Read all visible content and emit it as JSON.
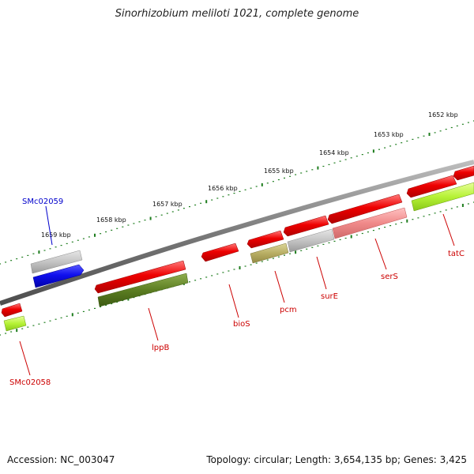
{
  "title": "Sinorhizobium meliloti 1021, complete genome",
  "footer": {
    "accession": "Accession: NC_003047",
    "summary": "Topology: circular; Length: 3,654,135 bp; Genes: 3,425"
  },
  "colors": {
    "backbone": "#8a8a8a",
    "tick": "#1e7d1e",
    "label_red": "#cc0000",
    "label_blue": "#0000cc"
  },
  "scale_labels": [
    "1652 kbp",
    "1653 kbp",
    "1654 kbp",
    "1655 kbp",
    "1656 kbp",
    "1657 kbp",
    "1658 kbp",
    "1659 kbp"
  ],
  "gene_labels": [
    {
      "id": "smc02059",
      "text": "SMc02059",
      "color": "blue"
    },
    {
      "id": "smc02058",
      "text": "SMc02058",
      "color": "red"
    },
    {
      "id": "lppb",
      "text": "lppB",
      "color": "red"
    },
    {
      "id": "bios",
      "text": "bioS",
      "color": "red"
    },
    {
      "id": "pcm",
      "text": "pcm",
      "color": "red"
    },
    {
      "id": "sure",
      "text": "surE",
      "color": "red"
    },
    {
      "id": "sers",
      "text": "serS",
      "color": "red"
    },
    {
      "id": "tatc",
      "text": "tatC",
      "color": "red"
    }
  ]
}
